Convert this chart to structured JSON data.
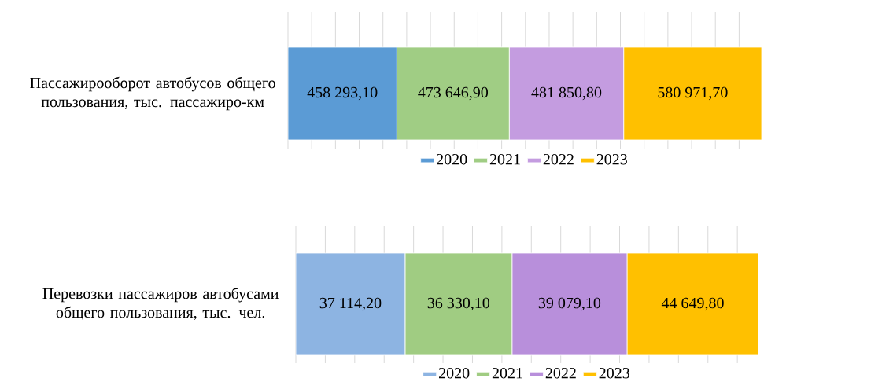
{
  "chart_data": [
    {
      "type": "bar",
      "orientation": "horizontal",
      "stacked": true,
      "categories": [
        "Пассажирооборот автобусов общего пользования, тыс. пассажиро-км"
      ],
      "grid": "x",
      "legend": "bottom",
      "tick_labels": "y",
      "series": [
        {
          "name": "2020",
          "color": "#5b9bd5",
          "values": [
            458293.1
          ],
          "value_labels": [
            "458 293,10"
          ]
        },
        {
          "name": "2021",
          "color": "#a0cd84",
          "values": [
            473646.9
          ],
          "value_labels": [
            "473 646,90"
          ]
        },
        {
          "name": "2022",
          "color": "#c49ce0",
          "values": [
            481850.8
          ],
          "value_labels": [
            "481 850,80"
          ]
        },
        {
          "name": "2023",
          "color": "#ffc000",
          "values": [
            580971.7
          ],
          "value_labels": [
            "580 971,70"
          ]
        }
      ]
    },
    {
      "type": "bar",
      "orientation": "horizontal",
      "stacked": true,
      "categories": [
        "Перевозки пассажиров автобусами общего пользования, тыс. чел."
      ],
      "grid": "x",
      "legend": "bottom",
      "tick_labels": "y",
      "series": [
        {
          "name": "2020",
          "color": "#8db4e2",
          "values": [
            37114.2
          ],
          "value_labels": [
            "37 114,20"
          ]
        },
        {
          "name": "2021",
          "color": "#a0cc82",
          "values": [
            36330.1
          ],
          "value_labels": [
            "36 330,10"
          ]
        },
        {
          "name": "2022",
          "color": "#b88fdb",
          "values": [
            39079.1
          ],
          "value_labels": [
            "39 079,10"
          ]
        },
        {
          "name": "2023",
          "color": "#ffc000",
          "values": [
            44649.8
          ],
          "value_labels": [
            "44 649,80"
          ]
        }
      ]
    }
  ]
}
